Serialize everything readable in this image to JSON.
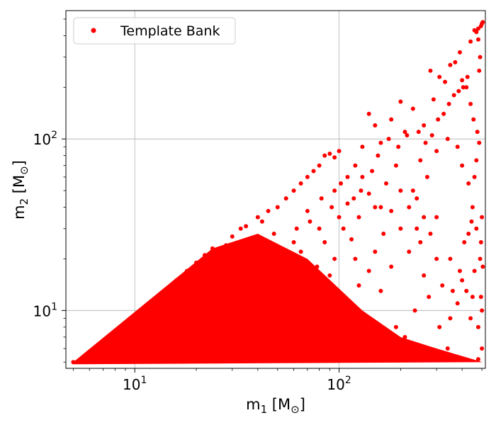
{
  "chart_data": {
    "type": "scatter",
    "xscale": "log",
    "yscale": "log",
    "xlim": [
      4.6,
      520
    ],
    "ylim": [
      4.6,
      560
    ],
    "grid": true,
    "legend": "top-left",
    "marker_color": "#ff0000",
    "xlabel": {
      "base": "m",
      "sub": "1",
      "unit_open": " [M",
      "unit_sub": "⊙",
      "unit_close": "]"
    },
    "ylabel": {
      "base": "m",
      "sub": "2",
      "unit_open": " [M",
      "unit_sub": "⊙",
      "unit_close": "]"
    },
    "x_major_ticks": [
      {
        "value": 10,
        "base": "10",
        "exp": "1"
      },
      {
        "value": 100,
        "base": "10",
        "exp": "2"
      }
    ],
    "y_major_ticks": [
      {
        "value": 10,
        "base": "10",
        "exp": "1"
      },
      {
        "value": 100,
        "base": "10",
        "exp": "2"
      }
    ],
    "series": [
      {
        "name": "Template Bank",
        "color": "#ff0000",
        "points": [
          [
            5.0,
            5.0
          ],
          [
            5.5,
            5.2
          ],
          [
            6,
            5.5
          ],
          [
            7,
            6
          ],
          [
            8,
            7
          ],
          [
            9,
            8
          ],
          [
            10,
            9
          ],
          [
            12,
            11
          ],
          [
            14,
            13
          ],
          [
            16,
            15
          ],
          [
            18,
            17
          ],
          [
            20,
            19
          ],
          [
            22,
            21
          ],
          [
            24,
            23
          ],
          [
            25,
            20
          ],
          [
            28,
            24
          ],
          [
            30,
            27
          ],
          [
            33,
            30
          ],
          [
            35,
            31
          ],
          [
            40,
            35
          ],
          [
            45,
            38
          ],
          [
            50,
            40
          ],
          [
            55,
            45
          ],
          [
            60,
            50
          ],
          [
            65,
            55
          ],
          [
            70,
            60
          ],
          [
            75,
            65
          ],
          [
            80,
            70
          ],
          [
            85,
            80
          ],
          [
            90,
            82
          ],
          [
            95,
            78
          ],
          [
            100,
            85
          ],
          [
            110,
            60
          ],
          [
            120,
            70
          ],
          [
            130,
            90
          ],
          [
            140,
            140
          ],
          [
            150,
            120
          ],
          [
            160,
            95
          ],
          [
            180,
            130
          ],
          [
            200,
            165
          ],
          [
            210,
            110
          ],
          [
            230,
            150
          ],
          [
            260,
            120
          ],
          [
            280,
            250
          ],
          [
            290,
            170
          ],
          [
            310,
            230
          ],
          [
            330,
            215
          ],
          [
            350,
            270
          ],
          [
            370,
            280
          ],
          [
            390,
            320
          ],
          [
            400,
            220
          ],
          [
            420,
            200
          ],
          [
            440,
            370
          ],
          [
            460,
            430
          ],
          [
            480,
            440
          ],
          [
            500,
            470
          ],
          [
            505,
            480
          ],
          [
            495,
            455
          ],
          [
            470,
            420
          ],
          [
            40,
            20
          ],
          [
            60,
            25
          ],
          [
            80,
            30
          ],
          [
            100,
            35
          ],
          [
            150,
            40
          ],
          [
            200,
            30
          ],
          [
            250,
            25
          ],
          [
            300,
            35
          ],
          [
            350,
            20
          ],
          [
            400,
            15
          ],
          [
            450,
            12
          ],
          [
            500,
            10
          ],
          [
            120,
            20
          ],
          [
            180,
            18
          ],
          [
            220,
            22
          ],
          [
            260,
            16
          ],
          [
            320,
            14
          ],
          [
            380,
            11
          ],
          [
            440,
            9
          ],
          [
            480,
            8
          ],
          [
            500,
            6
          ],
          [
            480,
            5.2
          ],
          [
            300,
            5.3
          ],
          [
            200,
            5.5
          ],
          [
            100,
            5.2
          ],
          [
            350,
            9
          ],
          [
            420,
            13
          ],
          [
            460,
            17
          ],
          [
            490,
            20
          ],
          [
            470,
            30
          ],
          [
            450,
            40
          ],
          [
            430,
            55
          ],
          [
            400,
            70
          ],
          [
            380,
            90
          ],
          [
            340,
            100
          ],
          [
            300,
            85
          ],
          [
            250,
            75
          ],
          [
            270,
            60
          ],
          [
            240,
            45
          ],
          [
            230,
            50
          ],
          [
            190,
            70
          ],
          [
            170,
            55
          ],
          [
            160,
            40
          ],
          [
            140,
            48
          ],
          [
            130,
            60
          ],
          [
            125,
            35
          ],
          [
            110,
            42
          ],
          [
            95,
            50
          ],
          [
            70,
            38
          ],
          [
            65,
            22
          ],
          [
            55,
            16
          ],
          [
            48,
            28
          ],
          [
            42,
            33
          ],
          [
            36,
            26
          ],
          [
            32,
            18
          ],
          [
            28,
            14
          ],
          [
            26,
            10
          ],
          [
            24,
            8
          ],
          [
            22,
            6
          ],
          [
            30,
            7
          ],
          [
            50,
            8
          ],
          [
            75,
            12
          ],
          [
            90,
            16
          ],
          [
            110,
            11
          ],
          [
            135,
            9
          ],
          [
            160,
            13
          ],
          [
            190,
            8
          ],
          [
            210,
            7
          ],
          [
            235,
            10
          ],
          [
            275,
            12
          ],
          [
            310,
            8
          ],
          [
            340,
            6
          ],
          [
            360,
            13
          ],
          [
            390,
            17
          ],
          [
            410,
            25
          ],
          [
            430,
            28
          ],
          [
            445,
            33
          ],
          [
            460,
            60
          ],
          [
            470,
            75
          ],
          [
            485,
            95
          ],
          [
            475,
            110
          ],
          [
            455,
            130
          ],
          [
            440,
            160
          ],
          [
            500,
            35
          ],
          [
            495,
            25
          ],
          [
            505,
            18
          ],
          [
            495,
            12
          ],
          [
            300,
            20
          ],
          [
            280,
            28
          ],
          [
            260,
            35
          ],
          [
            240,
            30
          ],
          [
            220,
            40
          ],
          [
            200,
            50
          ],
          [
            180,
            38
          ],
          [
            165,
            28
          ],
          [
            150,
            22
          ],
          [
            140,
            17
          ],
          [
            125,
            14
          ],
          [
            115,
            26
          ],
          [
            105,
            30
          ],
          [
            95,
            20
          ],
          [
            85,
            25
          ],
          [
            78,
            18
          ],
          [
            68,
            14
          ],
          [
            58,
            12
          ],
          [
            46,
            10
          ],
          [
            38,
            9
          ],
          [
            34,
            12
          ],
          [
            44,
            15
          ],
          [
            52,
            19
          ],
          [
            62,
            30
          ],
          [
            72,
            33
          ],
          [
            82,
            45
          ],
          [
            92,
            40
          ],
          [
            102,
            55
          ],
          [
            118,
            45
          ],
          [
            128,
            50
          ],
          [
            145,
            65
          ],
          [
            155,
            80
          ],
          [
            175,
            100
          ],
          [
            195,
            90
          ],
          [
            215,
            105
          ],
          [
            245,
            110
          ],
          [
            265,
            95
          ],
          [
            285,
            105
          ],
          [
            305,
            130
          ],
          [
            325,
            140
          ],
          [
            345,
            160
          ],
          [
            365,
            180
          ],
          [
            385,
            190
          ],
          [
            405,
            200
          ],
          [
            425,
            230
          ],
          [
            485,
            250
          ],
          [
            490,
            300
          ],
          [
            480,
            380
          ]
        ]
      }
    ]
  }
}
